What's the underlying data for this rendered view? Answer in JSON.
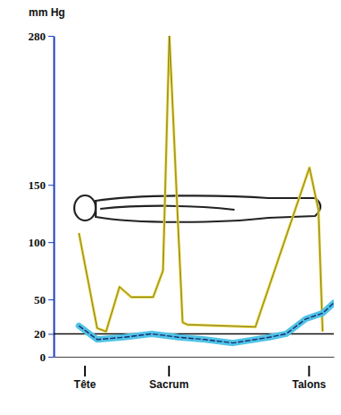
{
  "chart_data": {
    "type": "line",
    "y_label": "mm Hg",
    "ylim": [
      0,
      280
    ],
    "yticks": [
      0,
      20,
      50,
      100,
      150,
      280
    ],
    "xlim": [
      0,
      100
    ],
    "xticks": [
      {
        "value": 11,
        "label": "Tête"
      },
      {
        "value": 41,
        "label": "Sacrum"
      },
      {
        "value": 91,
        "label": "Talons"
      }
    ],
    "reference_line": 20,
    "grid": false,
    "series": [
      {
        "color": "#e6d23a",
        "x": [
          9,
          15.5,
          18.7,
          23.5,
          27.7,
          35.5,
          39,
          41.3,
          46,
          47.7,
          72,
          91.3,
          94.5,
          96
        ],
        "values": [
          108,
          25,
          22,
          61,
          52,
          52,
          75,
          280,
          30,
          28,
          26,
          165,
          128,
          22
        ]
      },
      {
        "color": "#4fc3e6",
        "x": [
          9,
          15.5,
          25,
          35,
          44.5,
          54,
          64,
          77,
          83,
          90,
          96,
          100
        ],
        "values": [
          27,
          15,
          17,
          20,
          17,
          15,
          12,
          17,
          20,
          33,
          38,
          47
        ]
      }
    ]
  }
}
